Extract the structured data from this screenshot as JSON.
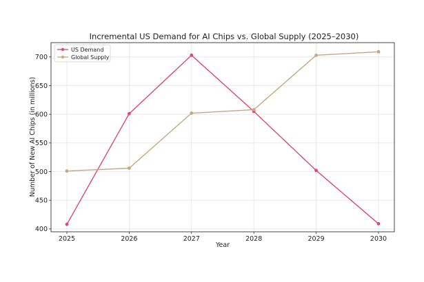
{
  "chart_data": {
    "type": "line",
    "title": "Incremental US Demand for AI Chips vs. Global Supply (2025–2030)",
    "xlabel": "Year",
    "ylabel": "Number of New AI Chips (in millions)",
    "x": [
      "2025",
      "2026",
      "2027",
      "2028",
      "2029",
      "2030"
    ],
    "ylim": [
      395,
      725
    ],
    "yticks": [
      400,
      450,
      500,
      550,
      600,
      650,
      700
    ],
    "grid": true,
    "legend_position": "top-left",
    "series": [
      {
        "name": "US Demand",
        "color": "#e0457b",
        "values": [
          408,
          601,
          703,
          605,
          502,
          409
        ]
      },
      {
        "name": "Global Supply",
        "color": "#c9a77c",
        "values": [
          501,
          506,
          602,
          608,
          703,
          709
        ]
      }
    ]
  }
}
